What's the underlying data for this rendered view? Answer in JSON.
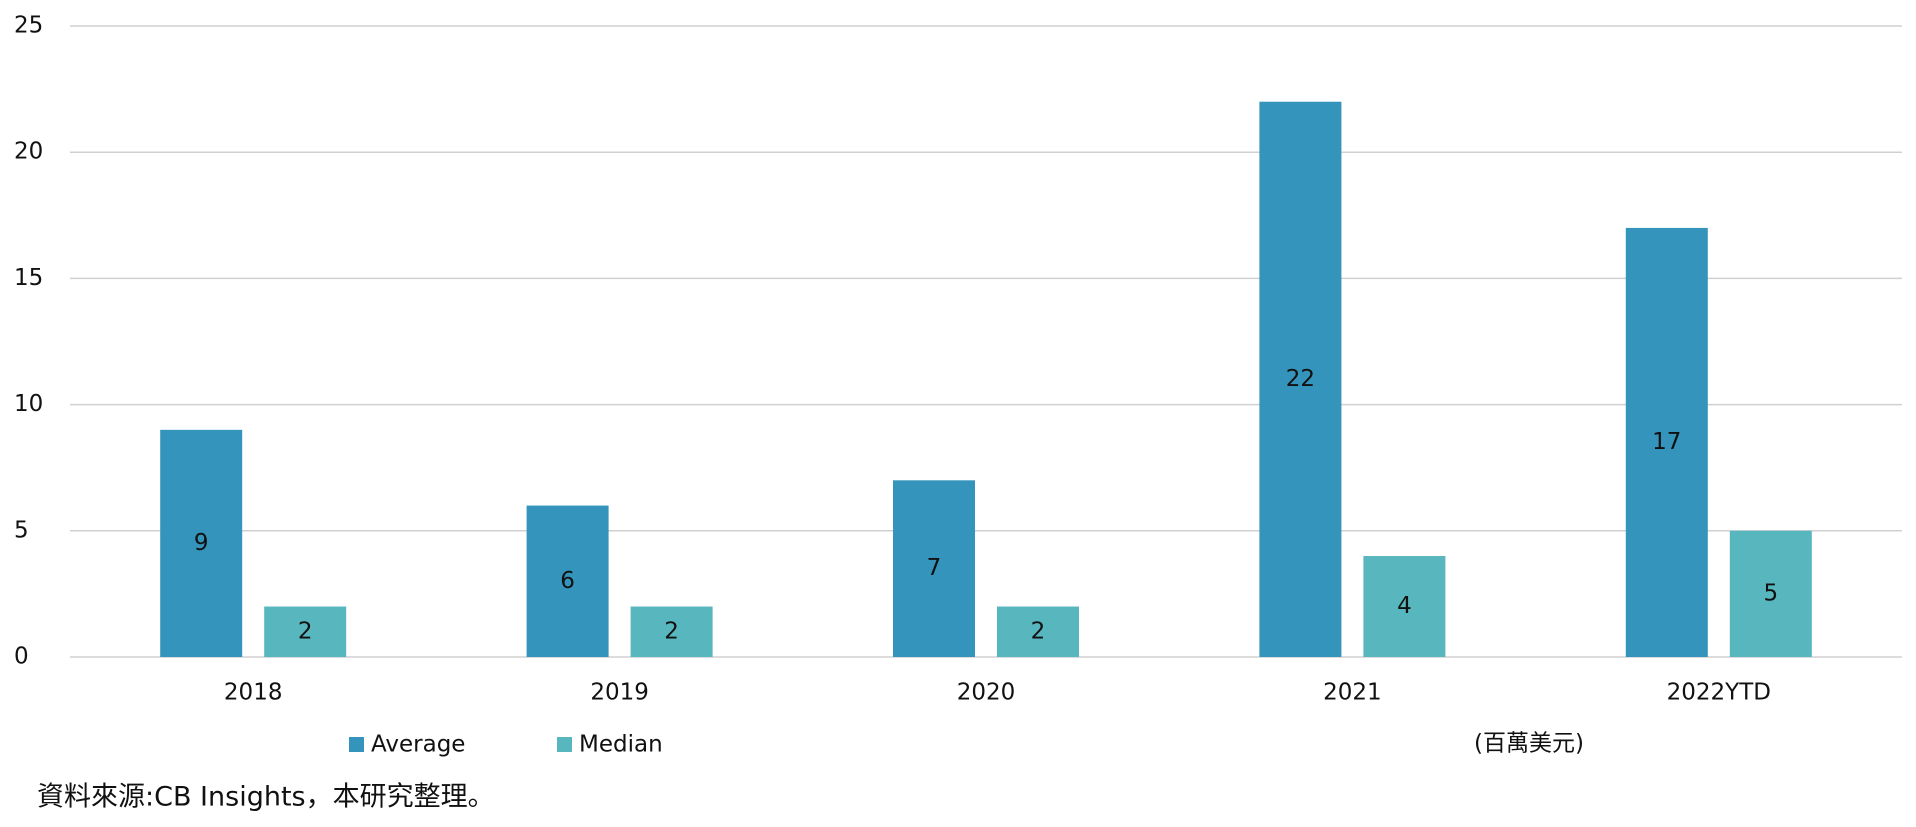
{
  "chart_data": {
    "type": "bar",
    "categories": [
      "2018",
      "2019",
      "2020",
      "2021",
      "2022YTD"
    ],
    "series": [
      {
        "name": "Average",
        "color": "#3494bb",
        "values": [
          9,
          6,
          7,
          22,
          17
        ]
      },
      {
        "name": "Median",
        "color": "#58b6bf",
        "values": [
          2,
          2,
          2,
          4,
          5
        ]
      }
    ],
    "ylim": [
      0,
      25
    ],
    "yticks": [
      0,
      5,
      10,
      15,
      20,
      25
    ],
    "grid": true,
    "unit_note": "(百萬美元)",
    "source": "資料來源:CB Insights，本研究整理。"
  }
}
